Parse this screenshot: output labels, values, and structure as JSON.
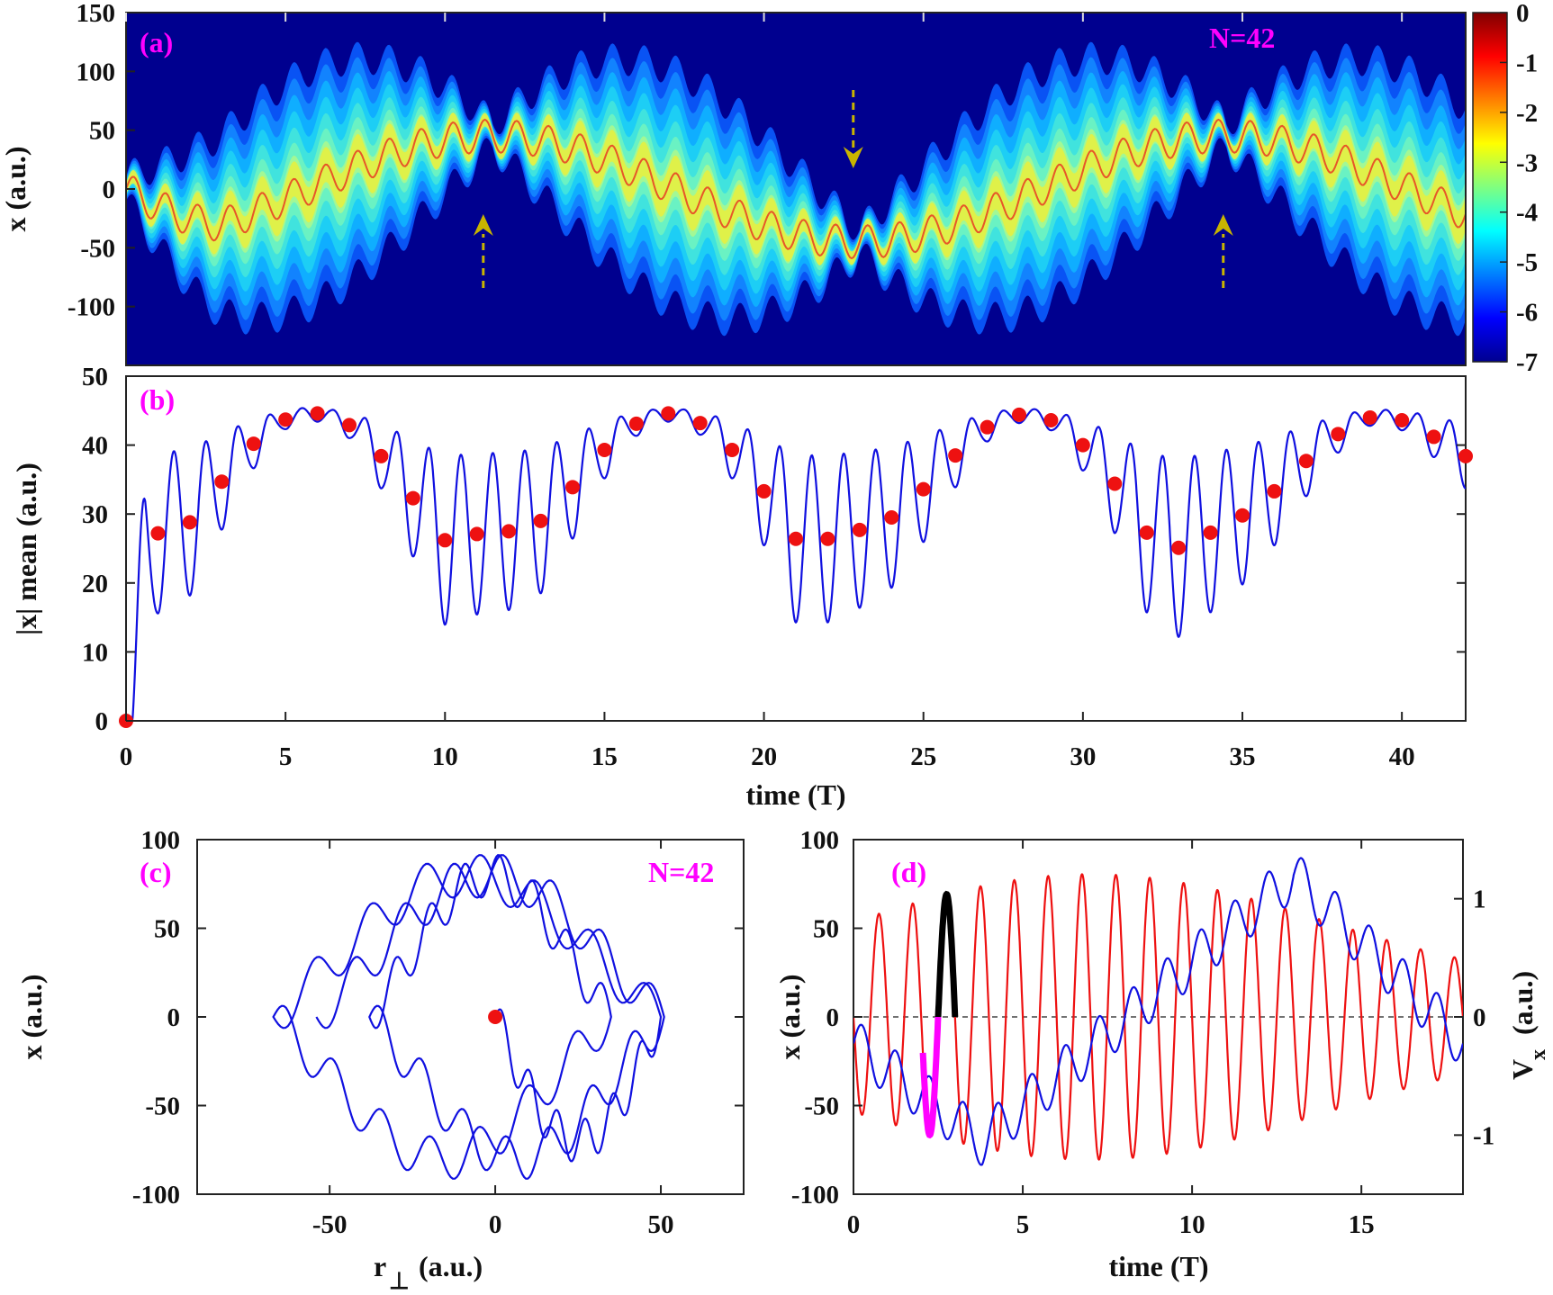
{
  "chart_data": [
    {
      "panel": "(a)",
      "type": "heatmap",
      "annotation": "N=42",
      "ylabel": "x (a.u.)",
      "xlim": [
        0,
        42
      ],
      "ylim": [
        -150,
        150
      ],
      "yticks": [
        "150",
        "100",
        "50",
        "0",
        "-50",
        "-100"
      ],
      "colorbar": {
        "range": [
          -7,
          0
        ],
        "ticks": [
          "0",
          "-1",
          "-2",
          "-3",
          "-4",
          "-5",
          "-6",
          "-7"
        ]
      },
      "arrows": [
        {
          "t": 11.2,
          "direction": "up"
        },
        {
          "t": 22.8,
          "direction": "down"
        },
        {
          "t": 34.4,
          "direction": "up"
        }
      ],
      "colors": {
        "background": "#00008f",
        "arrow": "#c8b400"
      }
    },
    {
      "panel": "(b)",
      "type": "line",
      "ylabel": "|x| mean (a.u.)",
      "xlabel": "time (T)",
      "xlim": [
        0,
        42
      ],
      "ylim": [
        0,
        50
      ],
      "xticks": [
        "0",
        "5",
        "10",
        "15",
        "20",
        "25",
        "30",
        "35",
        "40"
      ],
      "yticks": [
        "0",
        "10",
        "20",
        "30",
        "40",
        "50"
      ],
      "markers": {
        "x": [
          0,
          1,
          2,
          3,
          4,
          5,
          6,
          7,
          8,
          9,
          10,
          11,
          12,
          13,
          14,
          15,
          16,
          17,
          18,
          19,
          20,
          21,
          22,
          23,
          24,
          25,
          26,
          27,
          28,
          29,
          30,
          31,
          32,
          33,
          34,
          35,
          36,
          37,
          38,
          39,
          40,
          41,
          42
        ],
        "y": [
          0,
          27.2,
          28.8,
          34.7,
          40.2,
          43.7,
          44.6,
          42.9,
          38.4,
          32.3,
          26.2,
          27.1,
          27.5,
          29.0,
          33.9,
          39.3,
          43.1,
          44.6,
          43.2,
          39.3,
          33.3,
          26.4,
          26.4,
          27.7,
          29.5,
          33.6,
          38.5,
          42.6,
          44.4,
          43.6,
          40.0,
          34.4,
          27.3,
          25.1,
          27.3,
          29.8,
          33.3,
          37.7,
          41.6,
          44.0,
          43.6,
          41.2,
          38.4
        ]
      },
      "colors": {
        "line": "#1010e0",
        "markers": "#ee1111"
      }
    },
    {
      "panel": "(c)",
      "type": "line",
      "annotation": "N=42",
      "ylabel": "x (a.u.)",
      "xlabel": "r",
      "xlabel_sub": "⊥",
      "xlabel_unit": "(a.u.)",
      "xlim": [
        -90,
        75
      ],
      "ylim": [
        -100,
        100
      ],
      "xticks": [
        "-50",
        "0",
        "50"
      ],
      "yticks": [
        "100",
        "50",
        "0",
        "-50",
        "-100"
      ],
      "marker": {
        "x": 0,
        "y": 0
      },
      "colors": {
        "line": "#1010e0",
        "marker": "#ee1111"
      }
    },
    {
      "panel": "(d)",
      "type": "line",
      "ylabel": "x (a.u.)",
      "ylabel_right": "V",
      "ylabel_right_sub": "x",
      "ylabel_right_unit": "(a.u.)",
      "xlabel": "time (T)",
      "xlim": [
        0,
        18
      ],
      "ylim": [
        -100,
        100
      ],
      "ylim_right": [
        -1.5,
        1.5
      ],
      "xticks": [
        "0",
        "5",
        "10",
        "15"
      ],
      "yticks": [
        "100",
        "50",
        "0",
        "-50",
        "-100"
      ],
      "yticks_right": [
        "1",
        "0",
        "-1"
      ],
      "highlights": [
        {
          "t_start": 2.05,
          "t_end": 2.5,
          "color": "#ff00ff"
        },
        {
          "t_start": 2.5,
          "t_end": 3.0,
          "color": "#000000"
        }
      ],
      "colors": {
        "x_line": "#1010e0",
        "vx_line": "#ee1111"
      }
    }
  ]
}
